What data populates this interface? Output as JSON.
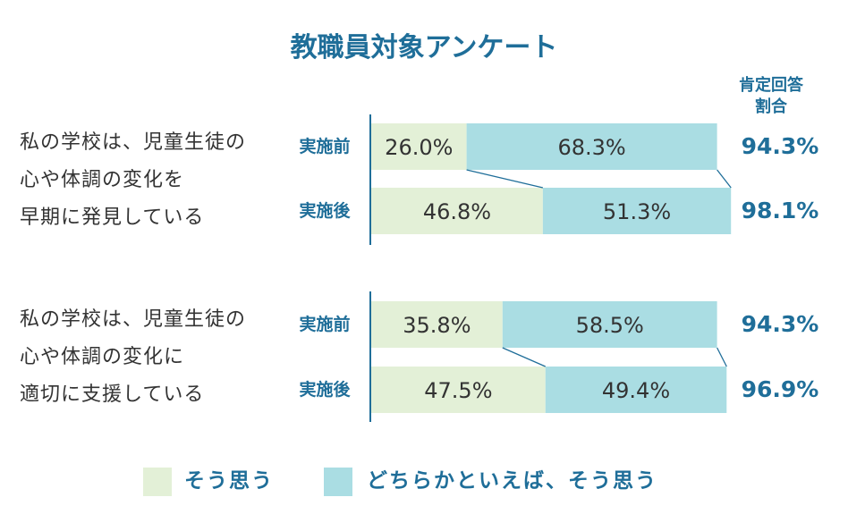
{
  "chart_data": {
    "type": "bar",
    "orientation": "horizontal",
    "stacked": true,
    "title": "教職員対象アンケート",
    "ratio_header": [
      "肯定回答",
      "割合"
    ],
    "colors": {
      "agree": "#e3f0d7",
      "somewhat": "#aadde3",
      "accent": "#1f6e99"
    },
    "series": [
      {
        "key": "agree",
        "name": "そう思う"
      },
      {
        "key": "somewhat",
        "name": "どちらかといえば、そう思う"
      }
    ],
    "groups": [
      {
        "question_lines": [
          "私の学校は、児童生徒の",
          "心や体調の変化を",
          "早期に発見している"
        ],
        "rows": [
          {
            "label": "実施前",
            "agree": 26.0,
            "agree_text": "26.0%",
            "somewhat": 68.3,
            "somewhat_text": "68.3%",
            "total_text": "94.3%"
          },
          {
            "label": "実施後",
            "agree": 46.8,
            "agree_text": "46.8%",
            "somewhat": 51.3,
            "somewhat_text": "51.3%",
            "total_text": "98.1%"
          }
        ]
      },
      {
        "question_lines": [
          "私の学校は、児童生徒の",
          "心や体調の変化に",
          "適切に支援している"
        ],
        "rows": [
          {
            "label": "実施前",
            "agree": 35.8,
            "agree_text": "35.8%",
            "somewhat": 58.5,
            "somewhat_text": "58.5%",
            "total_text": "94.3%"
          },
          {
            "label": "実施後",
            "agree": 47.5,
            "agree_text": "47.5%",
            "somewhat": 49.4,
            "somewhat_text": "49.4%",
            "total_text": "96.9%"
          }
        ]
      }
    ]
  }
}
